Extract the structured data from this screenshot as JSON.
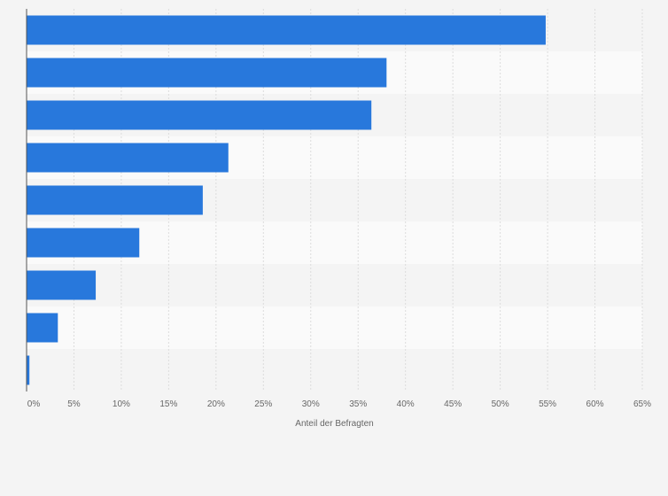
{
  "chart_data": {
    "type": "bar",
    "orientation": "horizontal",
    "title": "",
    "categories": [
      "",
      "",
      "",
      "",
      "",
      "",
      "",
      "",
      ""
    ],
    "values": [
      54.8,
      38.0,
      36.4,
      21.3,
      18.6,
      11.9,
      7.3,
      3.3,
      0.3
    ],
    "xlabel": "Anteil der Befragten",
    "ylabel": "",
    "xlim": [
      0,
      65
    ],
    "xticks": [
      0,
      5,
      10,
      15,
      20,
      25,
      30,
      35,
      40,
      45,
      50,
      55,
      60,
      65
    ],
    "xtick_labels": [
      "0%",
      "5%",
      "10%",
      "15%",
      "20%",
      "25%",
      "30%",
      "35%",
      "40%",
      "45%",
      "50%",
      "55%",
      "60%",
      "65%"
    ],
    "grid": true,
    "colors": {
      "bar": "#2878dc",
      "grid": "#dcdcdc",
      "band_light": "#fafafa",
      "band_dark": "#f4f4f4",
      "axis": "#555555"
    }
  }
}
